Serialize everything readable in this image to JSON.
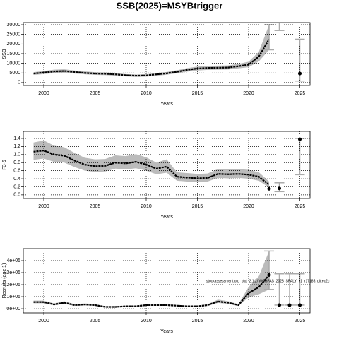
{
  "title": "SSB(2025)=MSYBtrigger",
  "chart_data": [
    {
      "type": "line",
      "ylabel": "SSB",
      "xlabel": "Years",
      "x": [
        1999,
        2000,
        2001,
        2002,
        2003,
        2004,
        2005,
        2006,
        2007,
        2008,
        2009,
        2010,
        2011,
        2012,
        2013,
        2014,
        2015,
        2016,
        2017,
        2018,
        2019,
        2020,
        2021,
        2022
      ],
      "values": [
        4700,
        5200,
        5800,
        6000,
        5500,
        5000,
        4700,
        4600,
        4300,
        3800,
        3600,
        3700,
        4300,
        4800,
        5600,
        6600,
        7300,
        7600,
        7700,
        7800,
        8500,
        9300,
        13500,
        22500
      ],
      "lower": [
        4000,
        4400,
        4900,
        5100,
        4700,
        4300,
        4000,
        3900,
        3600,
        3200,
        3000,
        3100,
        3600,
        4100,
        4800,
        5700,
        6300,
        6600,
        6700,
        6800,
        7400,
        8000,
        11000,
        17000
      ],
      "upper": [
        5400,
        6000,
        6700,
        6900,
        6300,
        5800,
        5400,
        5300,
        5000,
        4400,
        4200,
        4300,
        5000,
        5500,
        6400,
        7500,
        8300,
        8700,
        8800,
        8900,
        9700,
        10800,
        16000,
        30000
      ],
      "points": {
        "x": [
          2025
        ],
        "values": [
          4700
        ]
      },
      "intervals": {
        "x": [
          2022,
          2023,
          2025
        ],
        "lower": [
          17000,
          27000,
          800
        ],
        "upper": [
          30000,
          31000,
          22500
        ]
      },
      "band_color": "#bbbbbb",
      "color": "#000000",
      "xlim": [
        1998,
        2026
      ],
      "xticks": [
        2000,
        2005,
        2010,
        2015,
        2020,
        2025
      ],
      "ylim": [
        -1500,
        31100
      ],
      "yticks": [
        0,
        5000,
        10000,
        15000,
        20000,
        25000,
        30000
      ],
      "grid": true
    },
    {
      "type": "line",
      "ylabel": "F3-5",
      "xlabel": "Years",
      "x": [
        1999,
        2000,
        2001,
        2002,
        2003,
        2004,
        2005,
        2006,
        2007,
        2008,
        2009,
        2010,
        2011,
        2012,
        2013,
        2014,
        2015,
        2016,
        2017,
        2018,
        2019,
        2020,
        2021,
        2022
      ],
      "values": [
        1.07,
        1.1,
        1.0,
        0.97,
        0.85,
        0.75,
        0.71,
        0.72,
        0.8,
        0.78,
        0.82,
        0.75,
        0.65,
        0.7,
        0.45,
        0.43,
        0.41,
        0.42,
        0.52,
        0.51,
        0.52,
        0.5,
        0.45,
        0.25
      ],
      "lower": [
        0.87,
        0.9,
        0.82,
        0.8,
        0.69,
        0.6,
        0.57,
        0.58,
        0.65,
        0.63,
        0.66,
        0.6,
        0.51,
        0.55,
        0.35,
        0.33,
        0.32,
        0.33,
        0.42,
        0.41,
        0.42,
        0.4,
        0.35,
        0.18
      ],
      "upper": [
        1.3,
        1.35,
        1.22,
        1.18,
        1.04,
        0.92,
        0.88,
        0.89,
        0.98,
        0.96,
        1.01,
        0.93,
        0.8,
        0.88,
        0.56,
        0.54,
        0.52,
        0.53,
        0.64,
        0.63,
        0.64,
        0.62,
        0.56,
        0.33
      ],
      "points": {
        "x": [
          2022,
          2023,
          2025
        ],
        "values": [
          0.15,
          0.16,
          1.38
        ]
      },
      "intervals": {
        "x": [
          2023,
          2025
        ],
        "lower": [
          0.08,
          0.5
        ],
        "upper": [
          0.3,
          1.4
        ]
      },
      "band_color": "#bbbbbb",
      "color": "#000000",
      "xlim": [
        1998,
        2026
      ],
      "xticks": [
        2000,
        2005,
        2010,
        2015,
        2020,
        2025
      ],
      "ylim": [
        -0.09,
        1.575
      ],
      "yticks": [
        {
          "value": 0,
          "label": "0.0"
        },
        0.2,
        0.4,
        0.6,
        0.8,
        {
          "value": 1,
          "label": "1.0"
        },
        1.2,
        1.4
      ],
      "grid": true
    },
    {
      "type": "line",
      "ylabel": "Recruits (age 1)",
      "xlabel": "Years",
      "annotation": "stockassessment.org_plot_2.1.2/ WGBFAS_2023_SPALY_v1_r17185, git:ec2c",
      "x": [
        1999,
        2000,
        2001,
        2002,
        2003,
        2004,
        2005,
        2006,
        2007,
        2008,
        2009,
        2010,
        2011,
        2012,
        2013,
        2014,
        2015,
        2016,
        2017,
        2018,
        2019,
        2020,
        2021,
        2022
      ],
      "values": [
        55000,
        55000,
        35000,
        50000,
        30000,
        35000,
        30000,
        15000,
        15000,
        20000,
        20000,
        30000,
        30000,
        30000,
        25000,
        20000,
        20000,
        30000,
        60000,
        50000,
        30000,
        130000,
        180000,
        280000
      ],
      "lower": [
        45000,
        45000,
        28000,
        40000,
        24000,
        28000,
        24000,
        11000,
        11000,
        15000,
        15000,
        24000,
        24000,
        24000,
        19000,
        15000,
        15000,
        23000,
        48000,
        40000,
        23000,
        95000,
        120000,
        160000
      ],
      "upper": [
        67000,
        67000,
        44000,
        62000,
        38000,
        44000,
        38000,
        20000,
        20000,
        26000,
        26000,
        38000,
        38000,
        38000,
        32000,
        26000,
        26000,
        38000,
        75000,
        63000,
        38000,
        180000,
        270000,
        480000
      ],
      "points": {
        "x": [
          2022,
          2023,
          2024,
          2025
        ],
        "values": [
          280000,
          30000,
          30000,
          30000
        ]
      },
      "intervals": {
        "x": [
          2022,
          2023,
          2024,
          2025
        ],
        "lower": [
          160000,
          30000,
          30000,
          30000
        ],
        "upper": [
          480000,
          290000,
          290000,
          290000
        ]
      },
      "band_color": "#bbbbbb",
      "color": "#000000",
      "xlim": [
        1998,
        2026
      ],
      "xticks": [
        2000,
        2005,
        2010,
        2015,
        2020,
        2025
      ],
      "ylim": [
        -35000,
        500000
      ],
      "yticks": [
        {
          "value": 0,
          "label": "0e+00"
        },
        {
          "value": 100000,
          "label": "1e+05"
        },
        {
          "value": 200000,
          "label": "2e+05"
        },
        {
          "value": 300000,
          "label": "3e+05"
        },
        {
          "value": 400000,
          "label": "4e+05"
        }
      ],
      "grid": true
    }
  ]
}
